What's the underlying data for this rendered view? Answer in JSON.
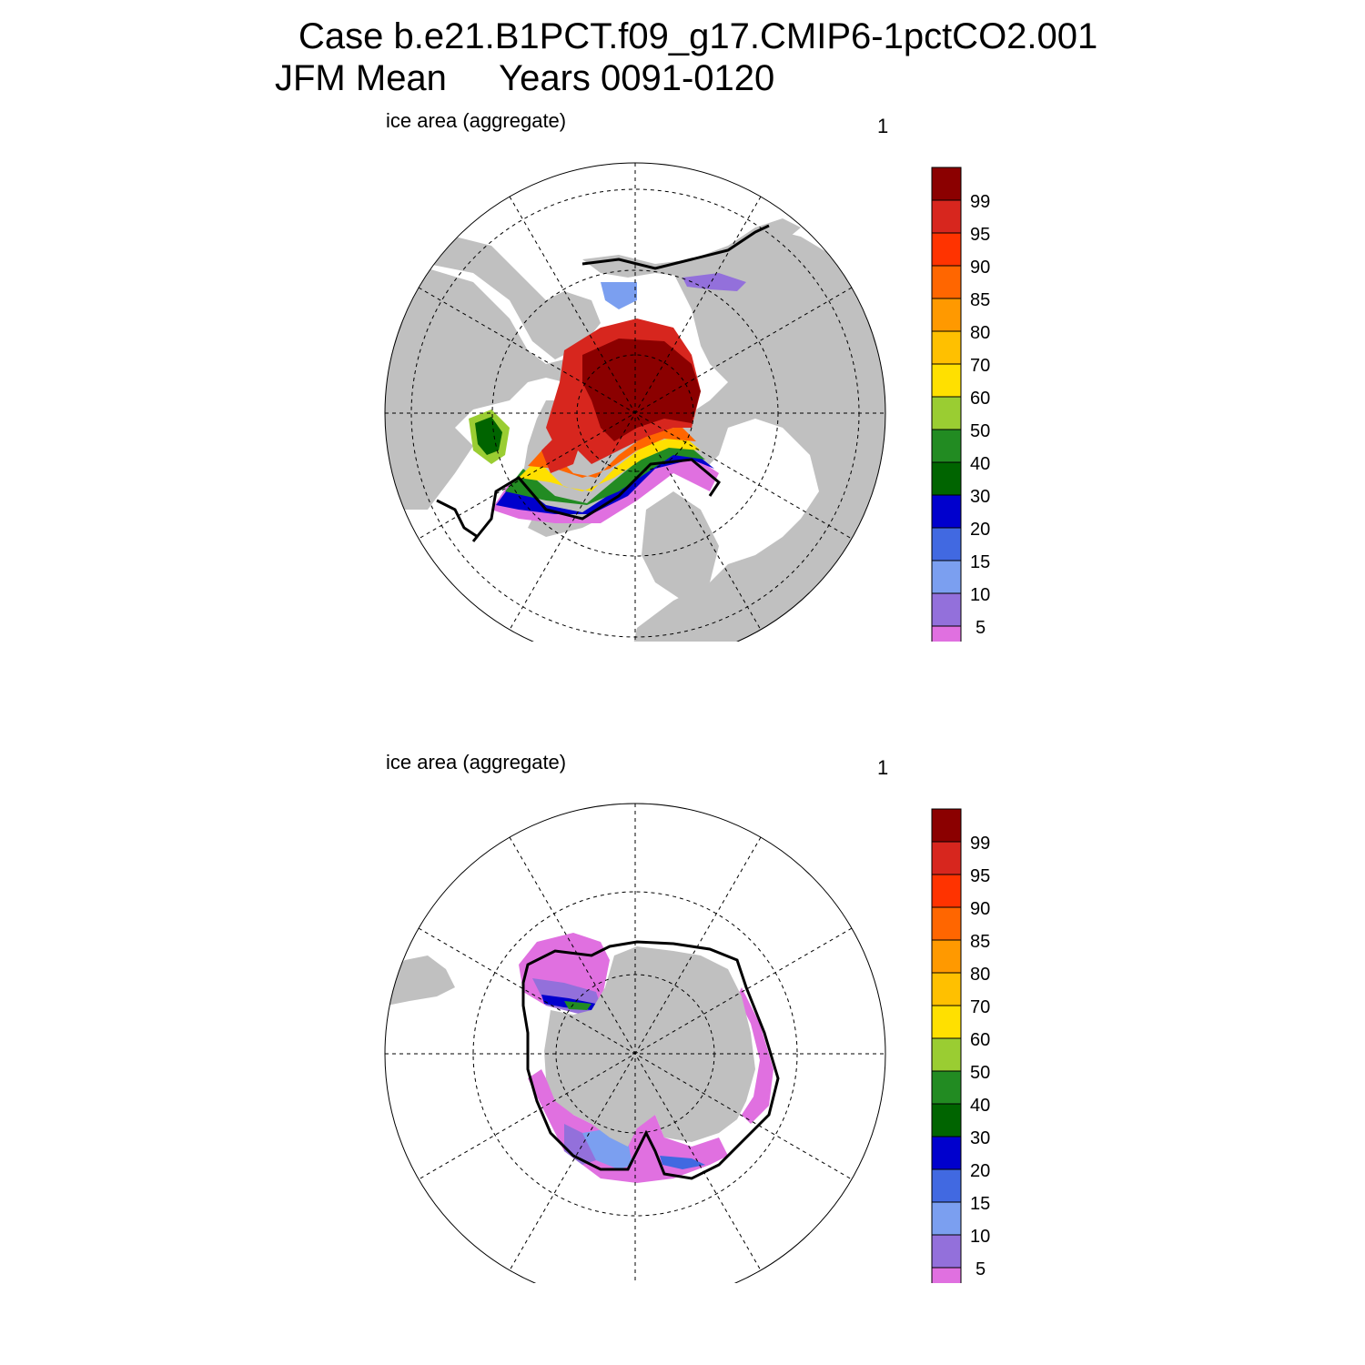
{
  "figure": {
    "title_line1": "Case b.e21.B1PCT.f09_g17.CMIP6-1pctCO2.001",
    "title_season": "JFM Mean",
    "title_years": "Years 0091-0120"
  },
  "panels": [
    {
      "hemisphere": "north",
      "variable_label": "ice area  (aggregate)",
      "panel_number": "1"
    },
    {
      "hemisphere": "south",
      "variable_label": "ice area  (aggregate)",
      "panel_number": "1"
    }
  ],
  "colorbar": {
    "labels": [
      "99",
      "95",
      "90",
      "85",
      "80",
      "70",
      "60",
      "50",
      "40",
      "30",
      "20",
      "15",
      "10",
      "5"
    ],
    "colors": [
      "#8b0000",
      "#d7261e",
      "#ff3300",
      "#ff6600",
      "#ff9900",
      "#ffc000",
      "#ffe000",
      "#9acd32",
      "#228b22",
      "#006400",
      "#0000cd",
      "#4169e1",
      "#7b9ff0",
      "#9370db",
      "#e070e0"
    ]
  },
  "colors": {
    "land": "#c0c0c0",
    "ocean": "#ffffff",
    "contour": "#000000"
  }
}
